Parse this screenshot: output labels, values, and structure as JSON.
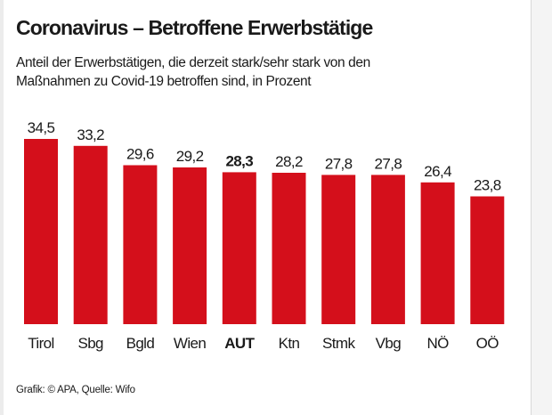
{
  "header": {
    "title": "Coronavirus – Betroffene Erwerbstätige",
    "subtitle": "Anteil der Erwerbstätigen, die derzeit stark/sehr stark von den Maßnahmen zu Covid-19 betroffen sind, in Prozent"
  },
  "footer": {
    "source": "Grafik: © APA, Quelle: Wifo"
  },
  "colors": {
    "bar": "#d40f1b",
    "text": "#1a1a1a"
  },
  "chart_data": {
    "type": "bar",
    "title": "Coronavirus – Betroffene Erwerbstätige",
    "subtitle": "Anteil der Erwerbstätigen, die derzeit stark/sehr stark von den Maßnahmen zu Covid-19 betroffen sind, in Prozent",
    "xlabel": "",
    "ylabel": "",
    "ylim": [
      0,
      34.5
    ],
    "grid": false,
    "legend": "none",
    "categories": [
      "Tirol",
      "Sbg",
      "Bgld",
      "Wien",
      "AUT",
      "Ktn",
      "Stmk",
      "Vbg",
      "NÖ",
      "OÖ"
    ],
    "values": [
      34.5,
      33.2,
      29.6,
      29.2,
      28.3,
      28.2,
      27.8,
      27.8,
      26.4,
      23.8
    ],
    "value_labels": [
      "34,5",
      "33,2",
      "29,6",
      "29,2",
      "28,3",
      "28,2",
      "27,8",
      "27,8",
      "26,4",
      "23,8"
    ],
    "highlight": "AUT"
  }
}
